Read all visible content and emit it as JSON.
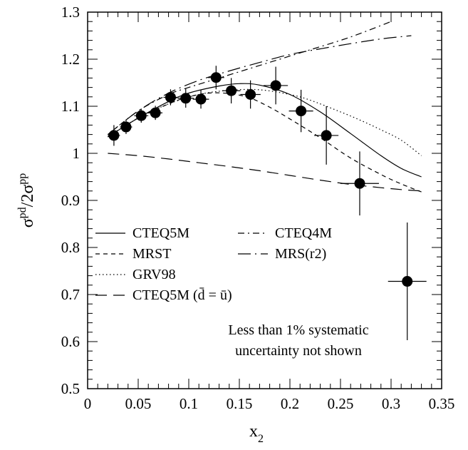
{
  "chart_data": {
    "type": "scatter",
    "xlabel": "x",
    "xlabel_sub": "2",
    "ylabel": "σ",
    "ylabel_sup1": "pd",
    "ylabel_mid": "/2σ",
    "ylabel_sup2": "pp",
    "xlim": [
      0,
      0.35
    ],
    "ylim": [
      0.5,
      1.3
    ],
    "x_ticks": [
      0,
      0.05,
      0.1,
      0.15,
      0.2,
      0.25,
      0.3,
      0.35
    ],
    "x_tick_labels": [
      "0",
      "0.05",
      "0.1",
      "0.15",
      "0.2",
      "0.25",
      "0.3",
      "0.35"
    ],
    "y_ticks": [
      0.5,
      0.6,
      0.7,
      0.8,
      0.9,
      1.0,
      1.1,
      1.2,
      1.3
    ],
    "y_tick_labels": [
      "0.5",
      "0.6",
      "0.7",
      "0.8",
      "0.9",
      "1",
      "1.1",
      "1.2",
      "1.3"
    ],
    "grid": false,
    "legend_placement": "middle-left",
    "annotation_lines": [
      "Less than 1% systematic",
      "uncertainty not shown"
    ],
    "data_points": [
      {
        "x": 0.026,
        "y": 1.038,
        "xerr": 0.006,
        "yerr": 0.022
      },
      {
        "x": 0.038,
        "y": 1.056,
        "xerr": 0.006,
        "yerr": 0.015
      },
      {
        "x": 0.053,
        "y": 1.08,
        "xerr": 0.007,
        "yerr": 0.015
      },
      {
        "x": 0.067,
        "y": 1.086,
        "xerr": 0.007,
        "yerr": 0.015
      },
      {
        "x": 0.082,
        "y": 1.119,
        "xerr": 0.007,
        "yerr": 0.017
      },
      {
        "x": 0.097,
        "y": 1.117,
        "xerr": 0.008,
        "yerr": 0.02
      },
      {
        "x": 0.112,
        "y": 1.115,
        "xerr": 0.008,
        "yerr": 0.02
      },
      {
        "x": 0.127,
        "y": 1.161,
        "xerr": 0.008,
        "yerr": 0.025
      },
      {
        "x": 0.142,
        "y": 1.133,
        "xerr": 0.009,
        "yerr": 0.027
      },
      {
        "x": 0.161,
        "y": 1.125,
        "xerr": 0.01,
        "yerr": 0.03
      },
      {
        "x": 0.186,
        "y": 1.144,
        "xerr": 0.012,
        "yerr": 0.04
      },
      {
        "x": 0.211,
        "y": 1.09,
        "xerr": 0.012,
        "yerr": 0.045
      },
      {
        "x": 0.236,
        "y": 1.038,
        "xerr": 0.012,
        "yerr": 0.062
      },
      {
        "x": 0.269,
        "y": 0.936,
        "xerr": 0.019,
        "yerr": 0.068
      },
      {
        "x": 0.316,
        "y": 0.728,
        "xerr": 0.019,
        "yerr": 0.125
      }
    ],
    "series": [
      {
        "name": "CTEQ5M",
        "dash": "solid",
        "points": [
          [
            0.02,
            1.035
          ],
          [
            0.05,
            1.075
          ],
          [
            0.08,
            1.11
          ],
          [
            0.1,
            1.128
          ],
          [
            0.13,
            1.143
          ],
          [
            0.15,
            1.148
          ],
          [
            0.17,
            1.145
          ],
          [
            0.2,
            1.125
          ],
          [
            0.23,
            1.088
          ],
          [
            0.26,
            1.042
          ],
          [
            0.29,
            0.995
          ],
          [
            0.31,
            0.968
          ],
          [
            0.33,
            0.95
          ]
        ]
      },
      {
        "name": "MRST",
        "dash": "short-dash",
        "points": [
          [
            0.02,
            1.035
          ],
          [
            0.05,
            1.075
          ],
          [
            0.08,
            1.105
          ],
          [
            0.1,
            1.12
          ],
          [
            0.12,
            1.128
          ],
          [
            0.14,
            1.127
          ],
          [
            0.16,
            1.118
          ],
          [
            0.18,
            1.098
          ],
          [
            0.2,
            1.073
          ],
          [
            0.23,
            1.033
          ],
          [
            0.26,
            0.99
          ],
          [
            0.29,
            0.955
          ],
          [
            0.31,
            0.935
          ],
          [
            0.33,
            0.918
          ]
        ]
      },
      {
        "name": "GRV98",
        "dash": "dotted",
        "points": [
          [
            0.02,
            1.035
          ],
          [
            0.05,
            1.075
          ],
          [
            0.08,
            1.105
          ],
          [
            0.11,
            1.125
          ],
          [
            0.14,
            1.134
          ],
          [
            0.17,
            1.135
          ],
          [
            0.2,
            1.125
          ],
          [
            0.22,
            1.113
          ],
          [
            0.25,
            1.088
          ],
          [
            0.27,
            1.07
          ],
          [
            0.29,
            1.05
          ],
          [
            0.31,
            1.028
          ],
          [
            0.33,
            0.995
          ]
        ]
      },
      {
        "name": "CTEQ5M (d̄ = ū)",
        "dash": "long-dash",
        "points": [
          [
            0.02,
            1.0
          ],
          [
            0.05,
            0.995
          ],
          [
            0.08,
            0.988
          ],
          [
            0.11,
            0.98
          ],
          [
            0.14,
            0.972
          ],
          [
            0.17,
            0.963
          ],
          [
            0.2,
            0.953
          ],
          [
            0.23,
            0.943
          ],
          [
            0.26,
            0.934
          ],
          [
            0.29,
            0.927
          ],
          [
            0.31,
            0.923
          ],
          [
            0.33,
            0.92
          ]
        ]
      },
      {
        "name": "CTEQ4M",
        "dash": "dash-dot",
        "points": [
          [
            0.02,
            1.04
          ],
          [
            0.05,
            1.09
          ],
          [
            0.08,
            1.125
          ],
          [
            0.1,
            1.14
          ],
          [
            0.13,
            1.16
          ],
          [
            0.16,
            1.18
          ],
          [
            0.19,
            1.2
          ],
          [
            0.22,
            1.22
          ],
          [
            0.25,
            1.24
          ],
          [
            0.27,
            1.255
          ],
          [
            0.3,
            1.28
          ]
        ]
      },
      {
        "name": "MRS(r2)",
        "dash": "long-dash-dot",
        "points": [
          [
            0.02,
            1.04
          ],
          [
            0.05,
            1.09
          ],
          [
            0.08,
            1.128
          ],
          [
            0.11,
            1.155
          ],
          [
            0.14,
            1.175
          ],
          [
            0.17,
            1.193
          ],
          [
            0.2,
            1.21
          ],
          [
            0.23,
            1.222
          ],
          [
            0.26,
            1.233
          ],
          [
            0.29,
            1.243
          ],
          [
            0.32,
            1.25
          ]
        ]
      }
    ]
  },
  "legend": {
    "left": [
      {
        "label": "CTEQ5M",
        "dash": "solid"
      },
      {
        "label": "MRST",
        "dash": "short-dash"
      },
      {
        "label": "GRV98",
        "dash": "dotted"
      },
      {
        "label": "CTEQ5M (d̄ = ū)",
        "dash": "long-dash"
      }
    ],
    "right": [
      {
        "label": "CTEQ4M",
        "dash": "dash-dot"
      },
      {
        "label": "MRS(r2)",
        "dash": "long-dash-dot"
      }
    ]
  }
}
